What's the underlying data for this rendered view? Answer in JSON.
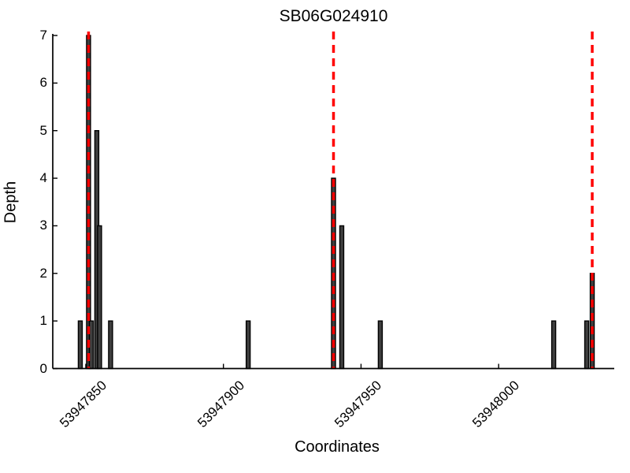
{
  "figure": {
    "title": "SB06G024910",
    "xlabel": "Coordinates",
    "ylabel": "Depth"
  },
  "chart_data": {
    "type": "bar",
    "title": "SB06G024910",
    "xlabel": "Coordinates",
    "ylabel": "Depth",
    "xlim": [
      53947838,
      53948042
    ],
    "ylim": [
      0,
      7
    ],
    "xticks": [
      53947850,
      53947900,
      53947950,
      53948000
    ],
    "yticks": [
      0,
      1,
      2,
      3,
      4,
      5,
      6,
      7
    ],
    "grid": false,
    "legend": null,
    "bars": [
      {
        "coordinate": 53947848,
        "depth": 1
      },
      {
        "coordinate": 53947851,
        "depth": 7
      },
      {
        "coordinate": 53947852,
        "depth": 1
      },
      {
        "coordinate": 53947854,
        "depth": 5
      },
      {
        "coordinate": 53947855,
        "depth": 3
      },
      {
        "coordinate": 53947859,
        "depth": 1
      },
      {
        "coordinate": 53947909,
        "depth": 1
      },
      {
        "coordinate": 53947940,
        "depth": 4
      },
      {
        "coordinate": 53947943,
        "depth": 3
      },
      {
        "coordinate": 53947957,
        "depth": 1
      },
      {
        "coordinate": 53948020,
        "depth": 1
      },
      {
        "coordinate": 53948032,
        "depth": 1
      },
      {
        "coordinate": 53948034,
        "depth": 2
      }
    ],
    "vlines": {
      "positions": [
        53947851,
        53947940,
        53948034
      ],
      "style": "dashed",
      "color": "#ff0000"
    },
    "colors": {
      "background": "#ffffff",
      "bar_fill": "#3f3f3f",
      "bar_edge": "#000000",
      "vline": "#ff0000",
      "axis": "#000000",
      "text": "#000000"
    }
  }
}
